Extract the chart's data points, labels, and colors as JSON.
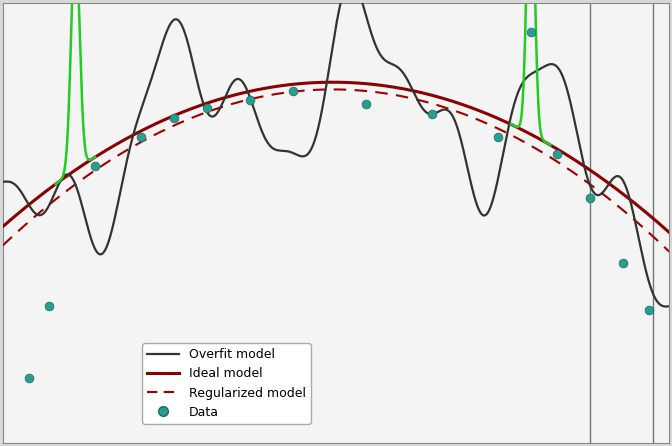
{
  "bg_color": "#d8d8d8",
  "plot_bg_color": "#f4f4f4",
  "overfit_color": "#333333",
  "ideal_color": "#8b0000",
  "regularized_color": "#a00000",
  "data_color": "#2a9d8f",
  "green_color": "#22cc22",
  "vline_color": "#555555",
  "legend_labels": [
    "Overfit model",
    "Ideal model",
    "Regularized model",
    "Data"
  ],
  "figsize": [
    6.72,
    4.46
  ],
  "dpi": 100
}
